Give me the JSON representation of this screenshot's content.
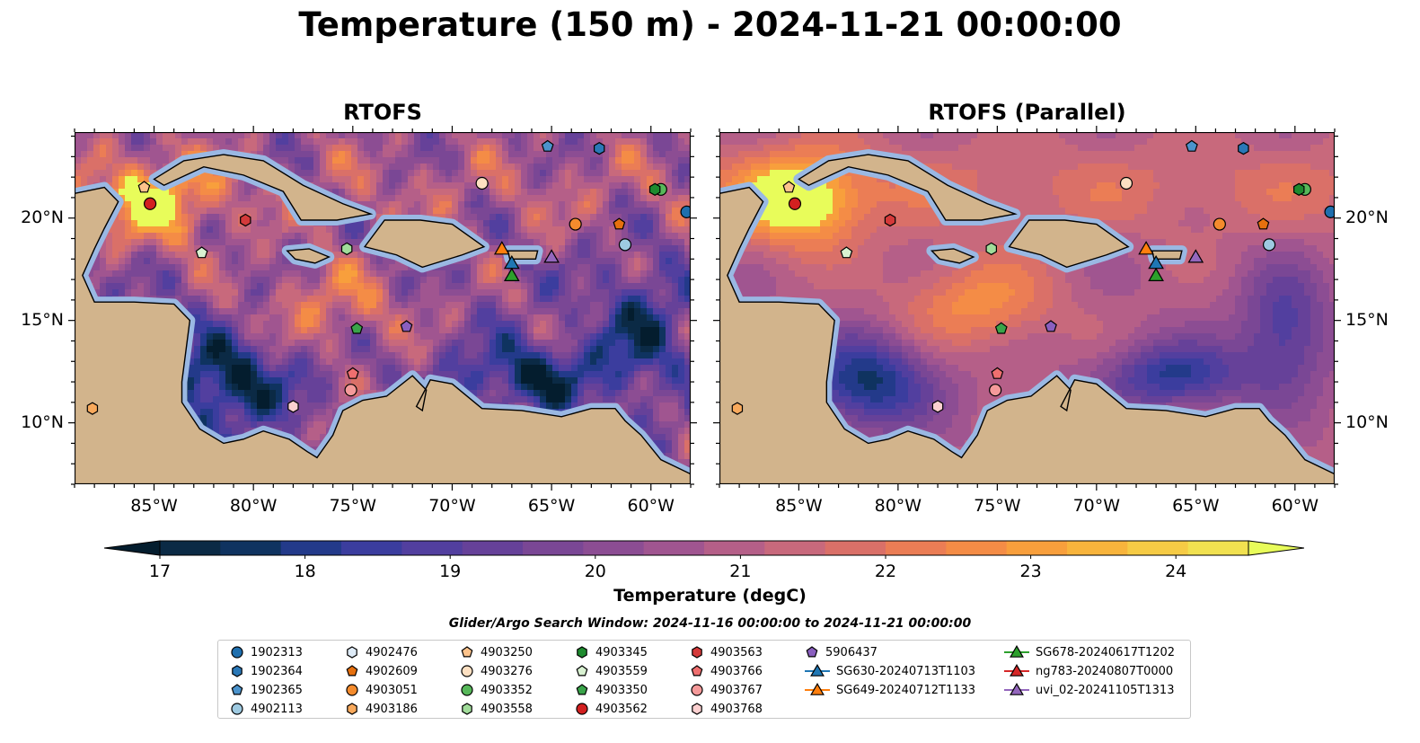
{
  "title": "Temperature (150 m) - 2024-11-21 00:00:00",
  "panels": [
    {
      "title": "RTOFS"
    },
    {
      "title": "RTOFS (Parallel)"
    }
  ],
  "axes": {
    "lon_labels": [
      "85°W",
      "80°W",
      "75°W",
      "70°W",
      "65°W",
      "60°W"
    ],
    "lon_values": [
      -85,
      -80,
      -75,
      -70,
      -65,
      -60
    ],
    "lat_labels": [
      "20°N",
      "15°N",
      "10°N"
    ],
    "lat_values": [
      20,
      15,
      10
    ],
    "lon_range": [
      -89,
      -58
    ],
    "lat_range": [
      7,
      24.2
    ]
  },
  "colorbar": {
    "label": "Temperature (degC)",
    "ticks": [
      "17",
      "18",
      "19",
      "20",
      "21",
      "22",
      "23",
      "24"
    ],
    "range": [
      17,
      24.5
    ],
    "step": 0.5,
    "colormap": "thermal",
    "colors": [
      "#0b2a45",
      "#0f3360",
      "#233a8a",
      "#3b3d9e",
      "#523f9f",
      "#664199",
      "#7a4795",
      "#8c4d93",
      "#a05590",
      "#b55f88",
      "#c8697c",
      "#da7068",
      "#eb7d55",
      "#f48c46",
      "#f89f3c",
      "#f8b43c",
      "#f6cb45",
      "#f1e150"
    ],
    "under_color": "#041d2e",
    "over_color": "#e8fc5a"
  },
  "search_window": "Glider/Argo Search Window: 2024-11-16 00:00:00 to 2024-11-21 00:00:00",
  "land_color": "#d2b48c",
  "shelf_color": "#9ab8e3",
  "legend": [
    {
      "label": "1902313",
      "marker": "circle",
      "color": "#1f6fae"
    },
    {
      "label": "1902364",
      "marker": "hexagon",
      "color": "#2a78b7"
    },
    {
      "label": "1902365",
      "marker": "pentagon",
      "color": "#4b93cc"
    },
    {
      "label": "4902113",
      "marker": "circle",
      "color": "#9ecae1"
    },
    {
      "label": "4902476",
      "marker": "hexagon",
      "color": "#deebf7"
    },
    {
      "label": "4902609",
      "marker": "pentagon",
      "color": "#e6700e"
    },
    {
      "label": "4903051",
      "marker": "circle",
      "color": "#f48b2d"
    },
    {
      "label": "4903186",
      "marker": "hexagon",
      "color": "#f8a95c"
    },
    {
      "label": "4903250",
      "marker": "pentagon",
      "color": "#fdc38b"
    },
    {
      "label": "4903276",
      "marker": "circle",
      "color": "#fde0c2"
    },
    {
      "label": "4903352",
      "marker": "circle",
      "color": "#57b85a"
    },
    {
      "label": "4903558",
      "marker": "hexagon",
      "color": "#a1dc9a"
    },
    {
      "label": "4903345",
      "marker": "hexagon",
      "color": "#1e8b2f"
    },
    {
      "label": "4903559",
      "marker": "pentagon",
      "color": "#d9f2d2"
    },
    {
      "label": "4903350",
      "marker": "pentagon",
      "color": "#3aa44a"
    },
    {
      "label": "4903562",
      "marker": "circle",
      "color": "#d22020"
    },
    {
      "label": "4903563",
      "marker": "hexagon",
      "color": "#d43a3a"
    },
    {
      "label": "4903766",
      "marker": "pentagon",
      "color": "#ef6f6f"
    },
    {
      "label": "4903767",
      "marker": "circle",
      "color": "#f59a9a"
    },
    {
      "label": "4903768",
      "marker": "hexagon",
      "color": "#fcd0d0"
    },
    {
      "label": "5906437",
      "marker": "pentagon",
      "color": "#8a5fbf"
    },
    {
      "label": "SG630-20240713T1103",
      "marker": "triangle-line",
      "color": "#1f77b4"
    },
    {
      "label": "SG649-20240712T1133",
      "marker": "triangle-line",
      "color": "#ff7f0e"
    },
    {
      "label": "SG678-20240617T1202",
      "marker": "triangle-line",
      "color": "#2ca02c"
    },
    {
      "label": "ng783-20240807T0000",
      "marker": "triangle-line",
      "color": "#d62728"
    },
    {
      "label": "uvi_02-20241105T1313",
      "marker": "triangle-line",
      "color": "#9467bd"
    }
  ],
  "floats": [
    {
      "id": "1902313",
      "lon": -58.2,
      "lat": 20.3
    },
    {
      "id": "1902364",
      "lon": -62.6,
      "lat": 23.4
    },
    {
      "id": "1902365",
      "lon": -65.2,
      "lat": 23.5
    },
    {
      "id": "4902113",
      "lon": -61.3,
      "lat": 18.7
    },
    {
      "id": "4902609",
      "lon": -61.6,
      "lat": 19.7
    },
    {
      "id": "4903051",
      "lon": -63.8,
      "lat": 19.7
    },
    {
      "id": "4903186",
      "lon": -88.1,
      "lat": 10.7
    },
    {
      "id": "4903250",
      "lon": -85.5,
      "lat": 21.5
    },
    {
      "id": "4903276",
      "lon": -68.5,
      "lat": 21.7
    },
    {
      "id": "4903352",
      "lon": -59.5,
      "lat": 21.4
    },
    {
      "id": "4903345",
      "lon": -59.8,
      "lat": 21.4
    },
    {
      "id": "4903559",
      "lon": -82.6,
      "lat": 18.3
    },
    {
      "id": "4903558",
      "lon": -75.3,
      "lat": 18.5
    },
    {
      "id": "4903350",
      "lon": -74.8,
      "lat": 14.6
    },
    {
      "id": "4903562",
      "lon": -85.2,
      "lat": 20.7
    },
    {
      "id": "4903563",
      "lon": -80.4,
      "lat": 19.9
    },
    {
      "id": "4903766",
      "lon": -75.0,
      "lat": 12.4
    },
    {
      "id": "4903767",
      "lon": -75.1,
      "lat": 11.6
    },
    {
      "id": "4903768",
      "lon": -78.0,
      "lat": 10.8
    },
    {
      "id": "5906437",
      "lon": -72.3,
      "lat": 14.7
    }
  ],
  "gliders": [
    {
      "id": "SG649-20240712T1133",
      "lon": -67.5,
      "lat": 18.5
    },
    {
      "id": "SG630-20240713T1103",
      "lon": -67.0,
      "lat": 17.8
    },
    {
      "id": "SG678-20240617T1202",
      "lon": -67.0,
      "lat": 17.2
    },
    {
      "id": "uvi_02-20241105T1313",
      "lon": -65.0,
      "lat": 18.1
    }
  ]
}
